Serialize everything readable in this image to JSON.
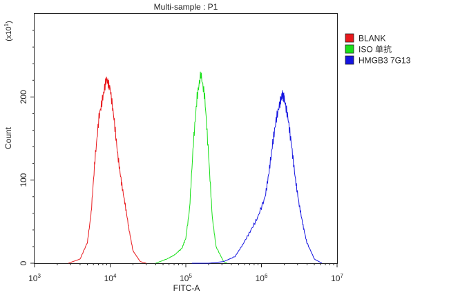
{
  "chart_data": {
    "type": "line",
    "title": "Multi-sample : P1",
    "xlabel": "FITC-A",
    "ylabel": "Count",
    "y_multiplier": "(x10",
    "y_multiplier_exp": "1",
    "x_scale": "log",
    "xlim": [
      1000,
      10000000
    ],
    "ylim": [
      0,
      300
    ],
    "grid": false,
    "legend_position": "top-right",
    "x_ticks": [
      {
        "value": 1000,
        "base": "10",
        "exp": "3"
      },
      {
        "value": 10000,
        "base": "10",
        "exp": "4"
      },
      {
        "value": 100000,
        "base": "10",
        "exp": "5"
      },
      {
        "value": 1000000,
        "base": "10",
        "exp": "6"
      },
      {
        "value": 10000000,
        "base": "10",
        "exp": "7"
      }
    ],
    "y_ticks": [
      {
        "value": 0,
        "label": "0"
      },
      {
        "value": 100,
        "label": "100"
      },
      {
        "value": 200,
        "label": "200"
      }
    ],
    "series": [
      {
        "name": "BLANK",
        "color": "#e8181c",
        "x": [
          2800,
          4000,
          5000,
          5600,
          6300,
          7100,
          8000,
          8900,
          10000,
          11200,
          12600,
          14100,
          15800,
          17800,
          20000,
          25000,
          30000
        ],
        "y": [
          0,
          5,
          25,
          60,
          125,
          175,
          200,
          222,
          210,
          175,
          130,
          97,
          70,
          40,
          15,
          2,
          0
        ]
      },
      {
        "name": "ISO 单抗",
        "color": "#18e018",
        "x": [
          40000,
          56000,
          71000,
          89000,
          100000,
          112000,
          126000,
          141000,
          158000,
          178000,
          200000,
          224000,
          251000,
          316000,
          350000
        ],
        "y": [
          0,
          5,
          10,
          18,
          30,
          65,
          145,
          200,
          228,
          200,
          130,
          55,
          20,
          2,
          0
        ]
      },
      {
        "name": "HMGB3 7G13",
        "color": "#1414e0",
        "x": [
          120000,
          200000,
          316000,
          447000,
          562000,
          708000,
          891000,
          1120000,
          1260000,
          1410000,
          1580000,
          1780000,
          1900000,
          2000000,
          2240000,
          2510000,
          2820000,
          3160000,
          3550000,
          3980000,
          5010000,
          6310000
        ],
        "y": [
          0,
          0,
          2,
          8,
          22,
          38,
          55,
          80,
          110,
          145,
          175,
          195,
          203,
          198,
          175,
          140,
          100,
          70,
          45,
          25,
          5,
          0
        ]
      }
    ]
  }
}
